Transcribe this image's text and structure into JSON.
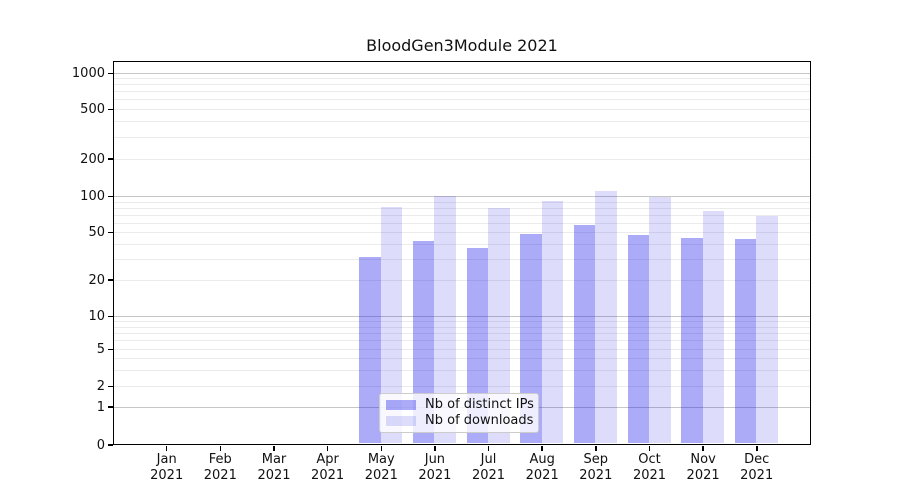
{
  "chart_data": {
    "type": "bar",
    "title": "BloodGen3Module 2021",
    "scale": "symlog",
    "xlabel": "",
    "ylabel": "",
    "ylim": [
      0,
      1400
    ],
    "yticks": [
      0,
      1,
      2,
      5,
      10,
      20,
      50,
      100,
      200,
      500,
      1000
    ],
    "grid": "horizontal major+minor",
    "legend_position": "lower center",
    "year_label": "2021",
    "categories": [
      "Jan",
      "Feb",
      "Mar",
      "Apr",
      "May",
      "Jun",
      "Jul",
      "Aug",
      "Sep",
      "Oct",
      "Nov",
      "Dec"
    ],
    "series": [
      {
        "name": "Nb of distinct IPs",
        "color": "rgba(15,15,235,0.35)",
        "color_hex_on_white": "#aaaaf8",
        "values": [
          0,
          0,
          0,
          0,
          31,
          42,
          37,
          48,
          57,
          47,
          45,
          44
        ]
      },
      {
        "name": "Nb of downloads",
        "color": "rgba(25,25,230,0.15)",
        "color_hex_on_white": "#dcdcfa",
        "values": [
          0,
          0,
          0,
          0,
          82,
          100,
          80,
          91,
          110,
          98,
          75,
          68
        ]
      }
    ]
  }
}
